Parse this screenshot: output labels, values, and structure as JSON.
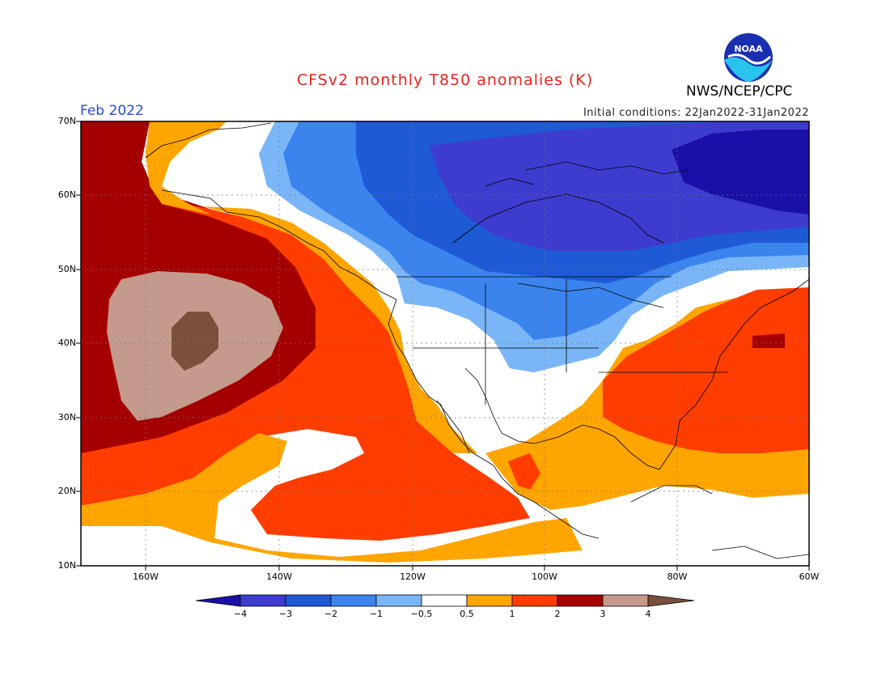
{
  "header": {
    "title": "CFSv2 monthly T850 anomalies (K)",
    "month": "Feb 2022",
    "initial_conditions": "Initial conditions: 22Jan2022-31Jan2022",
    "agency": "NWS/NCEP/CPC"
  },
  "logo": {
    "icon": "noaa-logo",
    "text": "NOAA"
  },
  "axes": {
    "lat_labels": [
      "70N",
      "60N",
      "50N",
      "40N",
      "30N",
      "20N",
      "10N"
    ],
    "lon_labels": [
      "160W",
      "140W",
      "120W",
      "100W",
      "80W",
      "60W"
    ]
  },
  "colorbar": {
    "labels": [
      "−4",
      "−3",
      "−2",
      "−1",
      "−0.5",
      "0.5",
      "1",
      "2",
      "3",
      "4"
    ],
    "colors": [
      "#1a0fa6",
      "#3d3ccf",
      "#1e5ad6",
      "#3b84ee",
      "#7ab6f7",
      "#ffffff",
      "#ffa500",
      "#ff3d00",
      "#a50000",
      "#c49a8c",
      "#7a4f3e"
    ]
  },
  "map_colors": {
    "deep_brown": "#7a4f3e",
    "tan": "#c49a8c",
    "dark_red": "#a50000",
    "red": "#ff3d00",
    "orange": "#ffa500",
    "white": "#ffffff",
    "light_blue": "#7ab6f7",
    "mid_blue": "#3b84ee",
    "blue": "#1e5ad6",
    "indigo": "#3d3ccf",
    "dark_indigo": "#1a0fa6"
  }
}
